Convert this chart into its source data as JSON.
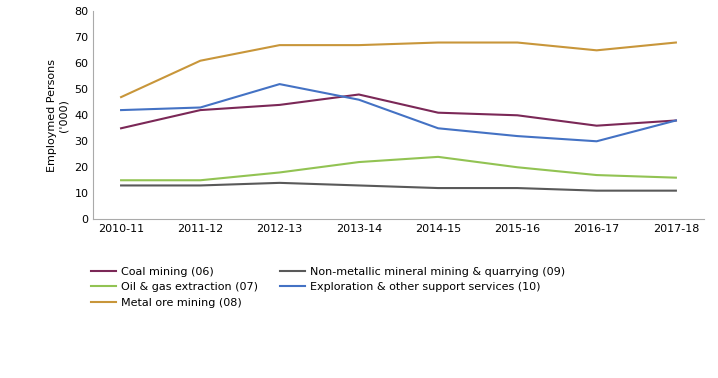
{
  "x_labels": [
    "2010-11",
    "2011-12",
    "2012-13",
    "2013-14",
    "2014-15",
    "2015-16",
    "2016-17",
    "2017-18"
  ],
  "series": [
    {
      "label": "Coal mining (06)",
      "color": "#7B2857",
      "values": [
        35,
        42,
        44,
        48,
        41,
        40,
        36,
        38
      ]
    },
    {
      "label": "Oil & gas extraction (07)",
      "color": "#92C353",
      "values": [
        15,
        15,
        18,
        22,
        24,
        20,
        17,
        16
      ]
    },
    {
      "label": "Metal ore mining (08)",
      "color": "#C8963A",
      "values": [
        47,
        61,
        67,
        67,
        68,
        68,
        65,
        68
      ]
    },
    {
      "label": "Non-metallic mineral mining & quarrying (09)",
      "color": "#595959",
      "values": [
        13,
        13,
        14,
        13,
        12,
        12,
        11,
        11
      ]
    },
    {
      "label": "Exploration & other support services (10)",
      "color": "#4472C4",
      "values": [
        42,
        43,
        52,
        46,
        35,
        32,
        30,
        38
      ]
    }
  ],
  "ylabel": "Employmed Persons\n('000)",
  "ylim": [
    0,
    80
  ],
  "yticks": [
    0,
    10,
    20,
    30,
    40,
    50,
    60,
    70,
    80
  ],
  "background_color": "#ffffff",
  "legend_order": [
    0,
    1,
    2,
    3,
    4
  ]
}
